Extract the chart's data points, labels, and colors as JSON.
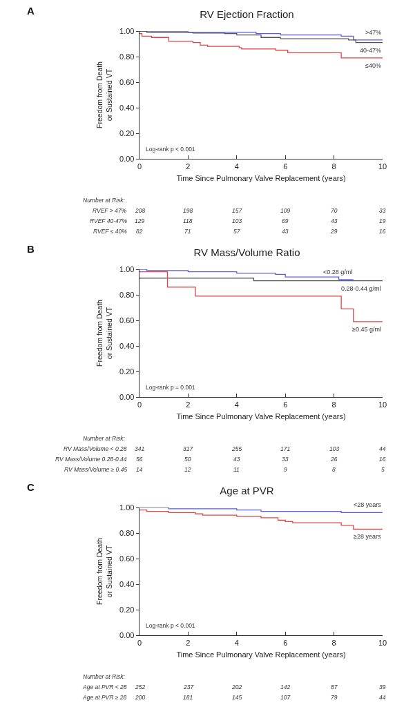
{
  "chart_data": [
    {
      "type": "step",
      "title": "RV Ejection Fraction",
      "xlabel": "Time Since Pulmonary Valve Replacement (years)",
      "ylabel": "Freedom from Death\nor Sustained VT",
      "xlim": [
        0,
        10
      ],
      "xticks": [
        0,
        2,
        4,
        6,
        8,
        10
      ],
      "ylim": [
        0,
        1
      ],
      "yticks": [
        {
          "value": 0,
          "label": "0.00"
        },
        {
          "value": 0.2,
          "label": "0.20"
        },
        {
          "value": 0.4,
          "label": "0.40"
        },
        {
          "value": 0.6,
          "label": "0.60"
        },
        {
          "value": 0.8,
          "label": "0.80"
        },
        {
          "value": 1,
          "label": "1.00"
        }
      ],
      "grid": false,
      "legend": false,
      "series": [
        {
          "name": ">47%",
          "color": "#5a5aea",
          "x": [
            0,
            0.5,
            2,
            4.8,
            5.8,
            8.3,
            8.8,
            10
          ],
          "values": [
            1.0,
            0.995,
            0.99,
            0.98,
            0.97,
            0.96,
            0.93,
            0.93
          ]
        },
        {
          "name": "40-47%",
          "color": "#555555",
          "x": [
            0,
            0.3,
            2.2,
            3.5,
            4,
            5,
            5.8,
            8.6,
            8.9,
            10
          ],
          "values": [
            1.0,
            0.99,
            0.985,
            0.98,
            0.97,
            0.95,
            0.94,
            0.93,
            0.91,
            0.91
          ]
        },
        {
          "name": "≤40%",
          "color": "#e04444",
          "x": [
            0,
            0.1,
            0.5,
            1.2,
            2.2,
            2.5,
            2.8,
            4.1,
            4.2,
            5.6,
            6.1,
            8.3,
            10
          ],
          "values": [
            0.98,
            0.96,
            0.95,
            0.92,
            0.91,
            0.89,
            0.88,
            0.87,
            0.86,
            0.85,
            0.83,
            0.79,
            0.79
          ]
        }
      ],
      "annotations": [
        "A",
        "Log-rank p < 0.001",
        "Number at Risk:",
        "RVEF > 47%",
        "208",
        "198",
        "157",
        "109",
        "70",
        "33",
        "RVEF 40-47%",
        "129",
        "118",
        "103",
        "69",
        "43",
        "19",
        "RVEF ≤ 40%",
        "82",
        "71",
        "57",
        "43",
        "29",
        "16"
      ]
    },
    {
      "type": "step",
      "title": "RV Mass/Volume Ratio",
      "xlabel": "Time Since Pulmonary Valve Replacement (years)",
      "ylabel": "Freedom from Death\nor Sustained VT",
      "xlim": [
        0,
        10
      ],
      "xticks": [
        0,
        2,
        4,
        6,
        8,
        10
      ],
      "ylim": [
        0,
        1
      ],
      "yticks": [
        {
          "value": 0,
          "label": "0.00"
        },
        {
          "value": 0.2,
          "label": "0.20"
        },
        {
          "value": 0.4,
          "label": "0.40"
        },
        {
          "value": 0.6,
          "label": "0.60"
        },
        {
          "value": 0.8,
          "label": "0.80"
        },
        {
          "value": 1,
          "label": "1.00"
        }
      ],
      "grid": false,
      "legend": false,
      "series": [
        {
          "name": "<0.28 g/ml",
          "color": "#5a5aea",
          "x": [
            0,
            0.3,
            2,
            4,
            5.6,
            6,
            8.2,
            8.8
          ],
          "values": [
            1.0,
            0.99,
            0.98,
            0.97,
            0.96,
            0.94,
            0.92,
            0.92
          ]
        },
        {
          "name": "0.28-0.44 g/ml",
          "color": "#555555",
          "x": [
            0,
            4.7,
            10
          ],
          "values": [
            0.93,
            0.91,
            0.91
          ]
        },
        {
          "name": "≥0.45 g/ml",
          "color": "#e04444",
          "x": [
            0,
            1.15,
            2.3,
            8.3,
            8.8,
            10
          ],
          "values": [
            0.98,
            0.86,
            0.79,
            0.69,
            0.59,
            0.59
          ]
        }
      ],
      "annotations": [
        "B",
        "Log-rank p = 0.001",
        "Number at Risk:",
        "RV Mass/Volume < 0.28",
        "341",
        "317",
        "255",
        "171",
        "103",
        "44",
        "RV Mass/Volume 0.28-0.44",
        "56",
        "50",
        "43",
        "33",
        "26",
        "16",
        "RV Mass/Volume ≥ 0.45",
        "14",
        "12",
        "11",
        "9",
        "8",
        "5"
      ]
    },
    {
      "type": "step",
      "title": "Age at PVR",
      "xlabel": "Time Since Pulmonary Valve Replacement (years)",
      "ylabel": "Freedom from Death\nor Sustained VT",
      "xlim": [
        0,
        10
      ],
      "xticks": [
        0,
        2,
        4,
        6,
        8,
        10
      ],
      "ylim": [
        0,
        1
      ],
      "yticks": [
        {
          "value": 0,
          "label": "0.00"
        },
        {
          "value": 0.2,
          "label": "0.20"
        },
        {
          "value": 0.4,
          "label": "0.40"
        },
        {
          "value": 0.6,
          "label": "0.60"
        },
        {
          "value": 0.8,
          "label": "0.80"
        },
        {
          "value": 1,
          "label": "1.00"
        }
      ],
      "grid": false,
      "legend": false,
      "series": [
        {
          "name": "<28 years",
          "color": "#5a5aea",
          "x": [
            0,
            1.2,
            4,
            5,
            8.3,
            10
          ],
          "values": [
            1.0,
            0.99,
            0.98,
            0.97,
            0.96,
            0.96
          ]
        },
        {
          "name": "≥28 years",
          "color": "#e04444",
          "x": [
            0,
            0.3,
            1.2,
            2.3,
            2.6,
            4,
            5,
            5.7,
            6,
            6.3,
            8.3,
            8.8,
            10
          ],
          "values": [
            0.98,
            0.97,
            0.96,
            0.95,
            0.94,
            0.93,
            0.92,
            0.9,
            0.89,
            0.88,
            0.86,
            0.83,
            0.83
          ]
        }
      ],
      "annotations": [
        "C",
        "Log-rank p < 0.001",
        "Number at Risk:",
        "Age at PVR < 28",
        "252",
        "237",
        "202",
        "142",
        "87",
        "39",
        "Age at PVR ≥ 28",
        "200",
        "181",
        "145",
        "107",
        "79",
        "44"
      ]
    }
  ]
}
